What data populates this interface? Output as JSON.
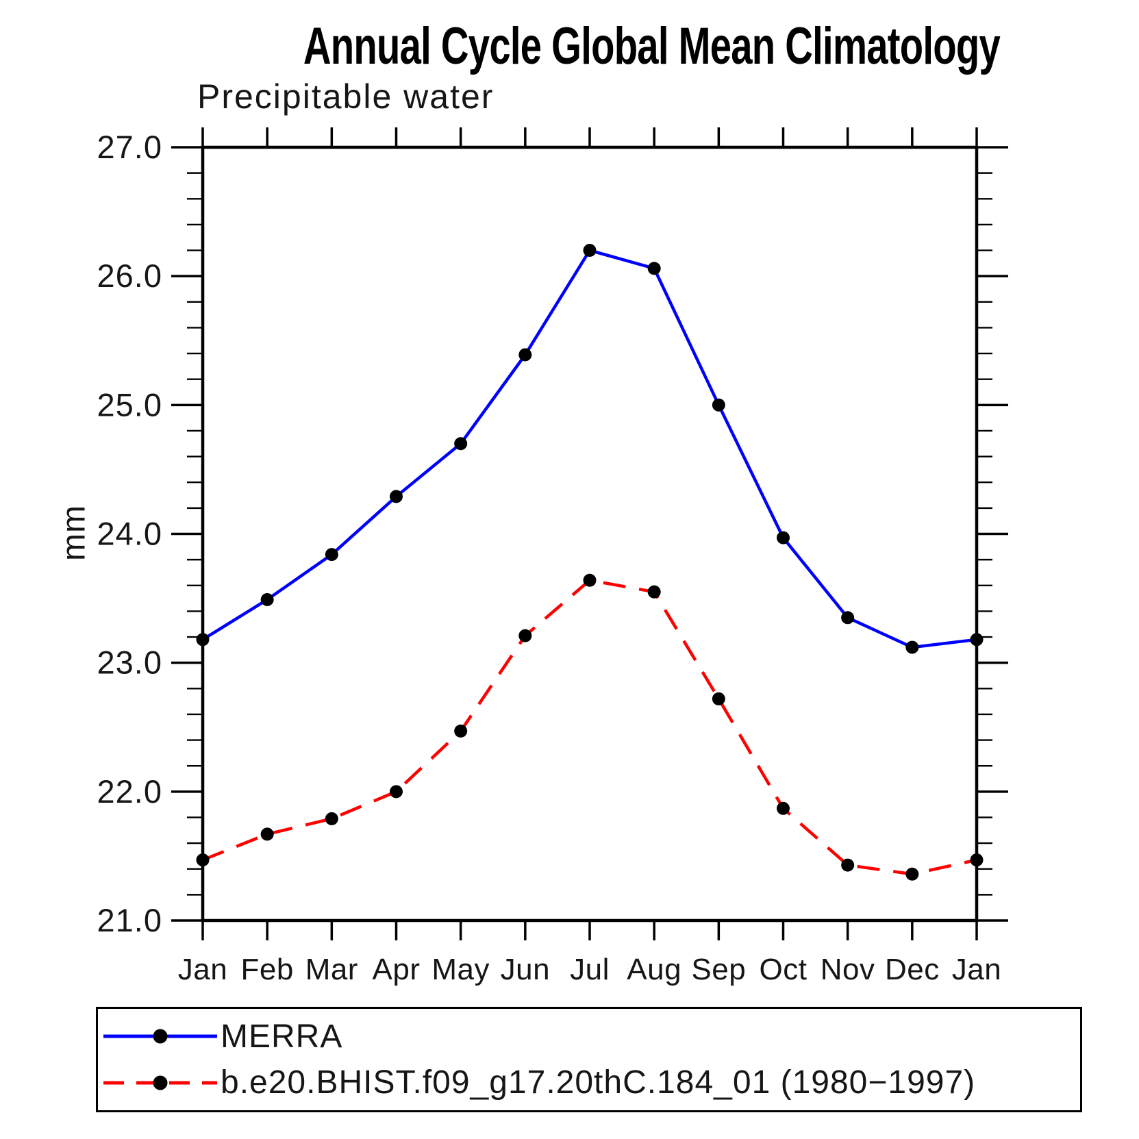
{
  "chart_data": {
    "type": "line",
    "title": "Annual Cycle Global Mean Climatology",
    "subtitle": "Precipitable water",
    "ylabel": "mm",
    "categories": [
      "Jan",
      "Feb",
      "Mar",
      "Apr",
      "May",
      "Jun",
      "Jul",
      "Aug",
      "Sep",
      "Oct",
      "Nov",
      "Dec",
      "Jan"
    ],
    "ylim": [
      21.0,
      27.0
    ],
    "y_major_step": 1.0,
    "y_minor_step": 0.2,
    "y_tick_labels": [
      "21.0",
      "22.0",
      "23.0",
      "24.0",
      "25.0",
      "26.0",
      "27.0"
    ],
    "grid": false,
    "legend_position": "bottom",
    "axis_color": "#000000",
    "series": [
      {
        "name": "MERRA",
        "color": "#0000ff",
        "line_style": "solid",
        "marker": "filled-circle",
        "marker_color": "#000000",
        "values": [
          23.18,
          23.49,
          23.84,
          24.29,
          24.7,
          25.39,
          26.2,
          26.06,
          25.0,
          23.97,
          23.35,
          23.12,
          23.18
        ]
      },
      {
        "name": "b.e20.BHIST.f09_g17.20thC.184_01 (1980−1997)",
        "color": "#ff0000",
        "line_style": "dashed",
        "marker": "filled-circle",
        "marker_color": "#000000",
        "values": [
          21.47,
          21.67,
          21.79,
          22.0,
          22.47,
          23.21,
          23.64,
          23.55,
          22.72,
          21.87,
          21.43,
          21.36,
          21.47
        ]
      }
    ]
  }
}
